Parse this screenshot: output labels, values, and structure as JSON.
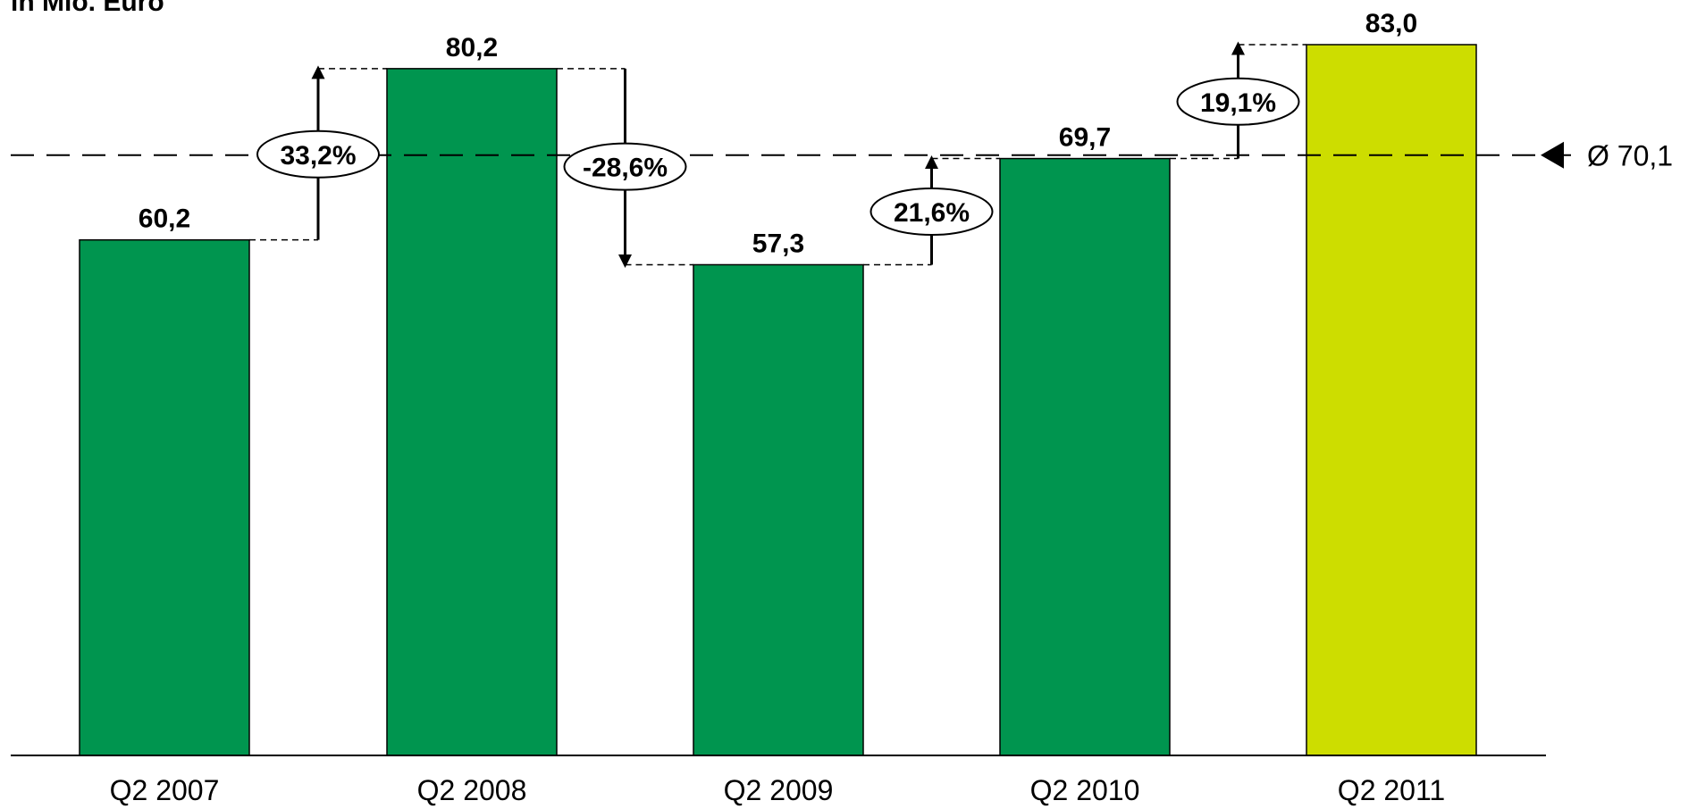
{
  "chart_data": {
    "type": "bar",
    "unit_label": "in Mio. Euro",
    "categories": [
      "Q2 2007",
      "Q2 2008",
      "Q2 2009",
      "Q2 2010",
      "Q2 2011"
    ],
    "values": [
      60.2,
      80.2,
      57.3,
      69.7,
      83.0
    ],
    "value_labels": [
      "60,2",
      "80,2",
      "57,3",
      "69,7",
      "83,0"
    ],
    "bar_colors": [
      "#00954f",
      "#00954f",
      "#00954f",
      "#00954f",
      "#cddd00"
    ],
    "ylim": [
      0,
      83.0
    ],
    "grid": false,
    "average": {
      "value": 70.1,
      "label": "Ø 70,1"
    },
    "changes": [
      {
        "from": "Q2 2007",
        "to": "Q2 2008",
        "label": "33,2%",
        "direction": "up"
      },
      {
        "from": "Q2 2008",
        "to": "Q2 2009",
        "label": "-28,6%",
        "direction": "down"
      },
      {
        "from": "Q2 2009",
        "to": "Q2 2010",
        "label": "21,6%",
        "direction": "up"
      },
      {
        "from": "Q2 2010",
        "to": "Q2 2011",
        "label": "19,1%",
        "direction": "up"
      }
    ]
  }
}
